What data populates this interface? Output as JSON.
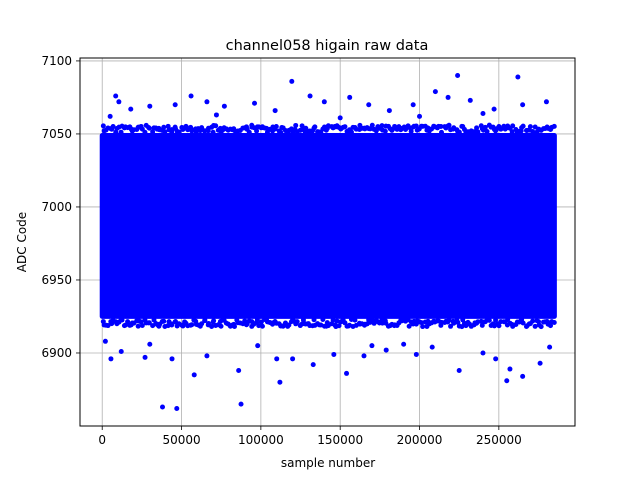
{
  "chart_data": {
    "type": "scatter",
    "title": "channel058 higain raw data",
    "xlabel": "sample number",
    "ylabel": "ADC Code",
    "xlim": [
      -14000,
      298000
    ],
    "ylim": [
      6850,
      7102
    ],
    "xticks": [
      0,
      50000,
      100000,
      150000,
      200000,
      250000
    ],
    "yticks": [
      6900,
      6950,
      7000,
      7050,
      7100
    ],
    "grid": true,
    "marker_color": "#0000ff",
    "series": [
      {
        "band": {
          "x_range": [
            0,
            285000
          ],
          "y_range": [
            6922,
            7052
          ]
        },
        "points": [
          {
            "x": 8500,
            "y": 7076
          },
          {
            "x": 10500,
            "y": 7072
          },
          {
            "x": 18000,
            "y": 7067
          },
          {
            "x": 30000,
            "y": 7069
          },
          {
            "x": 46000,
            "y": 7070
          },
          {
            "x": 56000,
            "y": 7076
          },
          {
            "x": 66000,
            "y": 7072
          },
          {
            "x": 77000,
            "y": 7069
          },
          {
            "x": 96000,
            "y": 7071
          },
          {
            "x": 109000,
            "y": 7066
          },
          {
            "x": 119500,
            "y": 7086
          },
          {
            "x": 131000,
            "y": 7076
          },
          {
            "x": 140000,
            "y": 7072
          },
          {
            "x": 156000,
            "y": 7075
          },
          {
            "x": 168000,
            "y": 7070
          },
          {
            "x": 181000,
            "y": 7066
          },
          {
            "x": 196000,
            "y": 7070
          },
          {
            "x": 210000,
            "y": 7079
          },
          {
            "x": 218000,
            "y": 7075
          },
          {
            "x": 224000,
            "y": 7090
          },
          {
            "x": 232000,
            "y": 7073
          },
          {
            "x": 247000,
            "y": 7067
          },
          {
            "x": 262000,
            "y": 7089
          },
          {
            "x": 265000,
            "y": 7070
          },
          {
            "x": 280000,
            "y": 7072
          },
          {
            "x": 5000,
            "y": 7062
          },
          {
            "x": 72000,
            "y": 7063
          },
          {
            "x": 150000,
            "y": 7061
          },
          {
            "x": 240000,
            "y": 7064
          },
          {
            "x": 200000,
            "y": 7062
          },
          {
            "x": 2000,
            "y": 6908
          },
          {
            "x": 5500,
            "y": 6896
          },
          {
            "x": 12000,
            "y": 6901
          },
          {
            "x": 27000,
            "y": 6897
          },
          {
            "x": 38000,
            "y": 6863
          },
          {
            "x": 44000,
            "y": 6896
          },
          {
            "x": 47000,
            "y": 6862
          },
          {
            "x": 58000,
            "y": 6885
          },
          {
            "x": 66000,
            "y": 6898
          },
          {
            "x": 86000,
            "y": 6888
          },
          {
            "x": 87500,
            "y": 6865
          },
          {
            "x": 110000,
            "y": 6896
          },
          {
            "x": 112000,
            "y": 6880
          },
          {
            "x": 120000,
            "y": 6896
          },
          {
            "x": 133000,
            "y": 6892
          },
          {
            "x": 146000,
            "y": 6899
          },
          {
            "x": 154000,
            "y": 6886
          },
          {
            "x": 165000,
            "y": 6898
          },
          {
            "x": 179000,
            "y": 6902
          },
          {
            "x": 198000,
            "y": 6899
          },
          {
            "x": 208000,
            "y": 6904
          },
          {
            "x": 225000,
            "y": 6888
          },
          {
            "x": 240000,
            "y": 6900
          },
          {
            "x": 248000,
            "y": 6896
          },
          {
            "x": 255000,
            "y": 6881
          },
          {
            "x": 257000,
            "y": 6889
          },
          {
            "x": 265000,
            "y": 6884
          },
          {
            "x": 276000,
            "y": 6893
          },
          {
            "x": 282000,
            "y": 6904
          },
          {
            "x": 98000,
            "y": 6905
          },
          {
            "x": 190000,
            "y": 6906
          },
          {
            "x": 30000,
            "y": 6906
          },
          {
            "x": 170000,
            "y": 6905
          }
        ]
      }
    ]
  }
}
